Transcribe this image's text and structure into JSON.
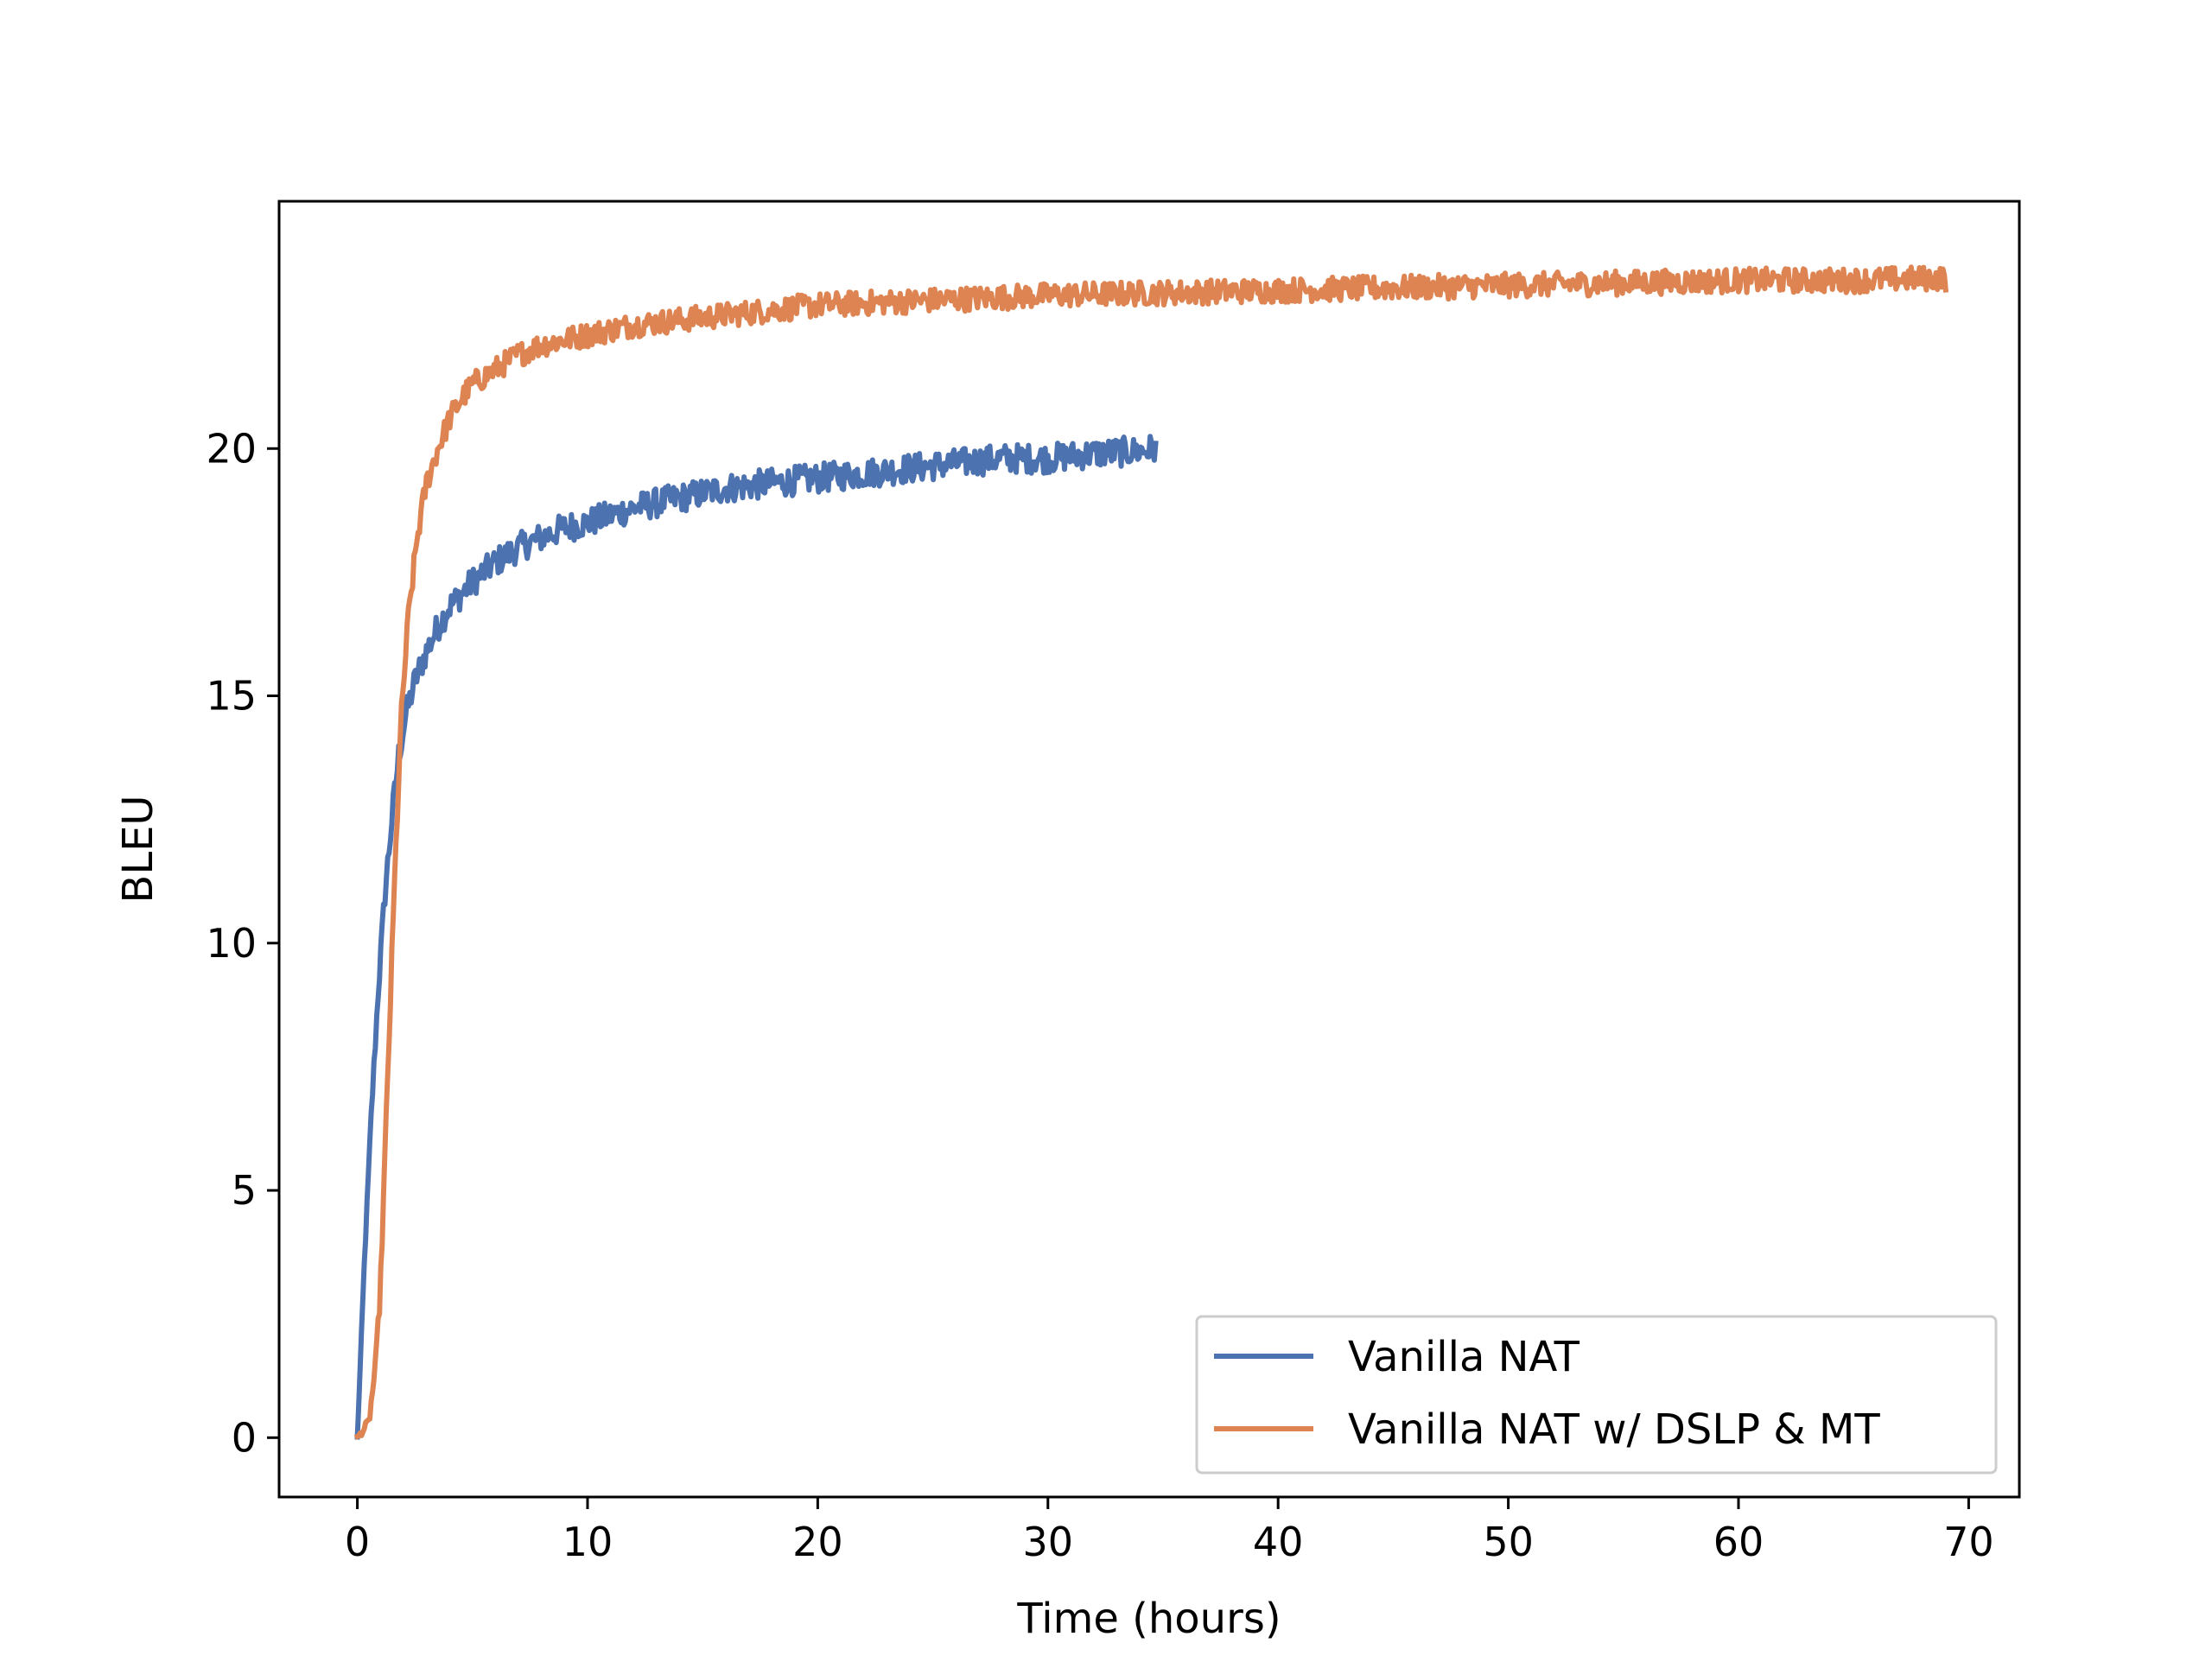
{
  "chart_data": {
    "type": "line",
    "title": "",
    "xlabel": "Time (hours)",
    "ylabel": "BLEU",
    "xlim": [
      -3.4,
      72.2
    ],
    "ylim": [
      -1.2,
      25.0
    ],
    "xticks": [
      0,
      10,
      20,
      30,
      40,
      50,
      60,
      70
    ],
    "yticks": [
      0,
      5,
      10,
      15,
      20
    ],
    "grid": false,
    "legend_position": "lower-right",
    "series": [
      {
        "name": "Vanilla NAT",
        "color": "#4c72b0",
        "noise": 0.3,
        "x": [
          0,
          0.3,
          0.6,
          0.9,
          1.2,
          1.5,
          1.8,
          2.1,
          2.5,
          3,
          3.5,
          4,
          5,
          6,
          7,
          8,
          9,
          10,
          12,
          14,
          16,
          18,
          20,
          22,
          24,
          26,
          28,
          30,
          32,
          34,
          34.7
        ],
        "y": [
          0,
          3.5,
          6.5,
          9.0,
          11.0,
          12.5,
          13.8,
          14.6,
          15.3,
          15.9,
          16.4,
          16.8,
          17.3,
          17.7,
          18.0,
          18.2,
          18.4,
          18.5,
          18.8,
          19.0,
          19.2,
          19.3,
          19.4,
          19.5,
          19.6,
          19.7,
          19.8,
          19.8,
          19.9,
          19.95,
          20.0
        ]
      },
      {
        "name": "Vanilla NAT w/ DSLP & MT",
        "color": "#dd8452",
        "noise": 0.25,
        "x": [
          0,
          0.5,
          0.8,
          1.0,
          1.3,
          1.6,
          1.9,
          2.2,
          2.6,
          3.0,
          3.5,
          4.0,
          4.5,
          5.0,
          6,
          7,
          8,
          9,
          10,
          12,
          14,
          16,
          18,
          20,
          25,
          30,
          35,
          40,
          45,
          50,
          55,
          60,
          65,
          69
        ],
        "y": [
          0,
          0.3,
          1.5,
          3.0,
          7.0,
          11.0,
          14.5,
          16.5,
          18.2,
          19.3,
          20.0,
          20.6,
          21.0,
          21.3,
          21.6,
          21.9,
          22.1,
          22.2,
          22.3,
          22.5,
          22.6,
          22.7,
          22.8,
          22.9,
          23.0,
          23.1,
          23.15,
          23.2,
          23.25,
          23.3,
          23.35,
          23.4,
          23.4,
          23.45
        ]
      }
    ]
  }
}
